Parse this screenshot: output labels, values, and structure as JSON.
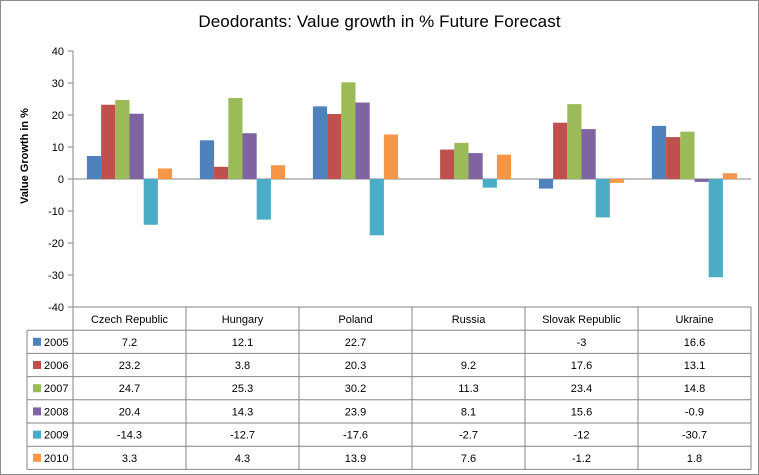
{
  "chart_data": {
    "type": "bar",
    "title": "Deodorants: Value growth in %  Future Forecast",
    "xlabel": "",
    "ylabel": "Value Growth in %",
    "ylim": [
      -40,
      40
    ],
    "yticks": [
      40,
      30,
      20,
      10,
      0,
      -10,
      -20,
      -30,
      -40
    ],
    "grid": false,
    "categories": [
      "Czech Republic",
      "Hungary",
      "Poland",
      "Russia",
      "Slovak Republic",
      "Ukraine"
    ],
    "series": [
      {
        "name": "2005",
        "color": "#4f81bd",
        "values": [
          7.2,
          12.1,
          22.7,
          null,
          -3,
          16.6
        ],
        "labels": [
          "7.2",
          "12.1",
          "22.7",
          "",
          "-3",
          "16.6"
        ]
      },
      {
        "name": "2006",
        "color": "#c0504d",
        "values": [
          23.2,
          3.8,
          20.3,
          9.2,
          17.6,
          13.1
        ],
        "labels": [
          "23.2",
          "3.8",
          "20.3",
          "9.2",
          "17.6",
          "13.1"
        ]
      },
      {
        "name": "2007",
        "color": "#9bbb59",
        "values": [
          24.7,
          25.3,
          30.2,
          11.3,
          23.4,
          14.8
        ],
        "labels": [
          "24.7",
          "25.3",
          "30.2",
          "11.3",
          "23.4",
          "14.8"
        ]
      },
      {
        "name": "2008",
        "color": "#8064a2",
        "values": [
          20.4,
          14.3,
          23.9,
          8.1,
          15.6,
          -0.9
        ],
        "labels": [
          "20.4",
          "14.3",
          "23.9",
          "8.1",
          "15.6",
          "-0.9"
        ]
      },
      {
        "name": "2009",
        "color": "#4bacc6",
        "values": [
          -14.3,
          -12.7,
          -17.6,
          -2.7,
          -12,
          -30.7
        ],
        "labels": [
          "-14.3",
          "-12.7",
          "-17.6",
          "-2.7",
          "-12",
          "-30.7"
        ]
      },
      {
        "name": "2010",
        "color": "#f79646",
        "values": [
          3.3,
          4.3,
          13.9,
          7.6,
          -1.2,
          1.8
        ],
        "labels": [
          "3.3",
          "4.3",
          "13.9",
          "7.6",
          "-1.2",
          "1.8"
        ]
      }
    ]
  }
}
